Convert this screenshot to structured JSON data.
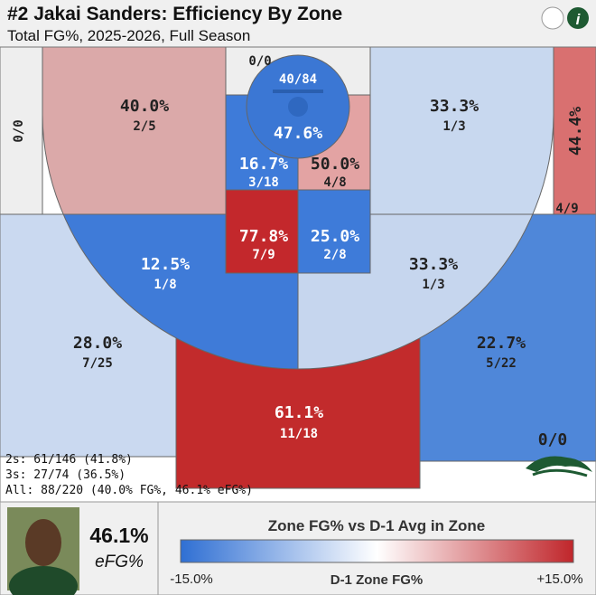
{
  "header": {
    "title": "#2 Jakai Sanders: Efficiency By Zone",
    "subtitle": "Total FG%, 2025-2026, Full Season"
  },
  "zones": [
    {
      "fraction": "0/0",
      "color": "#eeeeee"
    },
    {
      "pct": "40.0%",
      "fraction": "2/5",
      "color": "#dba9a9"
    },
    {
      "fraction": "0/0",
      "color": "#eeeeee"
    },
    {
      "pct": "47.6%",
      "fraction": "40/84",
      "color": "#3b77d4"
    },
    {
      "pct": "33.3%",
      "fraction": "1/3",
      "color": "#c8d8ef"
    },
    {
      "pct": "44.4%",
      "fraction": "4/9",
      "color": "#d97070"
    },
    {
      "pct": "16.7%",
      "fraction": "3/18",
      "color": "#3e7bd9"
    },
    {
      "pct": "50.0%",
      "fraction": "4/8",
      "color": "#e3a3a3"
    },
    {
      "pct": "77.8%",
      "fraction": "7/9",
      "color": "#c3282c"
    },
    {
      "pct": "25.0%",
      "fraction": "2/8",
      "color": "#3e7bd9"
    },
    {
      "pct": "12.5%",
      "fraction": "1/8",
      "color": "#3f7bd8"
    },
    {
      "pct": "33.3%",
      "fraction": "1/3",
      "color": "#c6d6ee"
    },
    {
      "pct": "28.0%",
      "fraction": "7/25",
      "color": "#cad9f0"
    },
    {
      "pct": "22.7%",
      "fraction": "5/22",
      "color": "#4f87d9"
    },
    {
      "pct": "61.1%",
      "fraction": "11/18",
      "color": "#c22b2c"
    },
    {
      "fraction": "0/0"
    }
  ],
  "summary": [
    "2s: 61/146 (41.8%)",
    "3s: 27/74 (36.5%)",
    "All: 88/220 (40.0% FG%, 46.1% eFG%)"
  ],
  "player": {
    "efg": "46.1%",
    "efg_label": "eFG%"
  },
  "legend": {
    "title": "Zone FG% vs D-1 Avg in Zone",
    "min_label": "-15.0%",
    "center_label": "D-1 Zone FG%",
    "max_label": "+15.0%",
    "colors": [
      "#2f6fd3",
      "#ffffff",
      "#c0262b"
    ]
  }
}
